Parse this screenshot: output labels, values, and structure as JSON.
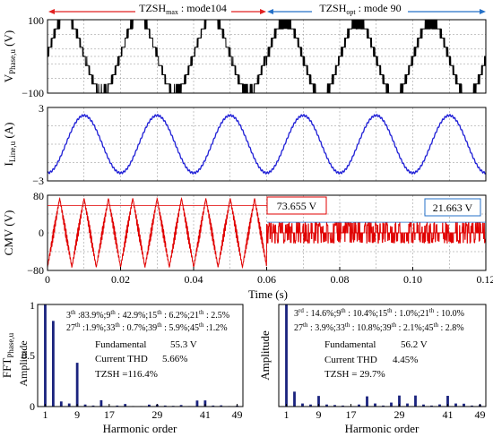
{
  "chart_data": [
    {
      "type": "line",
      "ylabel_main": "V",
      "ylabel_sub": "Phase,u",
      "ylabel_unit": " (V)",
      "ylim": [
        -100,
        100
      ],
      "ytick_labels": [
        "100",
        "−100"
      ],
      "xlim": [
        0,
        0.12
      ],
      "grid": true,
      "color": "#000000",
      "annotations": [
        {
          "main": "TZSH",
          "sub": "max",
          "rest": " : mode104",
          "color": "#e02020",
          "x_from": 0,
          "x_to": 0.06
        },
        {
          "main": "TZSH",
          "sub": "opt",
          "rest": " : mode 90",
          "color": "#2470c8",
          "x_from": 0.06,
          "x_to": 0.12
        }
      ],
      "series": [
        {
          "segment": "mode104",
          "x_range": [
            0,
            0.06
          ],
          "peak": 100,
          "fundamental_period": 0.02
        },
        {
          "segment": "mode90",
          "x_range": [
            0.06,
            0.12
          ],
          "peak": 100,
          "fundamental_period": 0.02
        }
      ]
    },
    {
      "type": "line",
      "ylabel_main": "I",
      "ylabel_sub": "Line,u",
      "ylabel_unit": " (A)",
      "ylim": [
        -3,
        3
      ],
      "ytick_labels": [
        "3",
        "−3"
      ],
      "xlim": [
        0,
        0.12
      ],
      "grid": true,
      "color": "#1f1fd6",
      "series": [
        {
          "amplitude": 2.35,
          "period": 0.02,
          "phase_deg": -90,
          "ripple": 0.08
        }
      ]
    },
    {
      "type": "line",
      "ylabel": "CMV (V)",
      "ylim": [
        -80,
        80
      ],
      "ytick_labels": [
        "80",
        "0",
        "−80"
      ],
      "xlim": [
        0,
        0.12
      ],
      "xticks": [
        0,
        0.02,
        0.04,
        0.06,
        0.08,
        0.1,
        0.12
      ],
      "xtick_labels": [
        "0",
        "0.02",
        "0.04",
        "0.06",
        "0.08",
        "0.10",
        "0.12"
      ],
      "xlabel": "Time (s)",
      "grid": true,
      "color": "#e00000",
      "series": [
        {
          "segment": "mode104",
          "x_range": [
            0,
            0.06
          ],
          "peak": 73.655,
          "period": 0.00667
        },
        {
          "segment": "mode90",
          "x_range": [
            0.06,
            0.12
          ],
          "peak": 21.663
        }
      ],
      "boxes": [
        {
          "text": "73.655 V",
          "color": "#e00000",
          "level": 73.655
        },
        {
          "text": "21.663 V",
          "color": "#2470c8",
          "level": 21.663
        }
      ]
    },
    {
      "type": "bar",
      "ylabel_main": "FFT",
      "ylabel_sub": "Phase,u",
      "ylim": [
        0,
        1
      ],
      "ytick_labels": [
        "1",
        "0.5",
        "0"
      ],
      "yaxis_title": "Amplitude",
      "xlabel": "Harmonic order",
      "xtick_labels": [
        "1",
        "9",
        "17",
        "29",
        "41",
        "49"
      ],
      "xticks": [
        1,
        9,
        17,
        29,
        41,
        49
      ],
      "color": "#1a237e",
      "harmonics": [
        1,
        3,
        5,
        7,
        9,
        11,
        13,
        15,
        17,
        19,
        21,
        23,
        25,
        27,
        29,
        31,
        33,
        35,
        37,
        39,
        41,
        43,
        45,
        47,
        49
      ],
      "values": [
        1.0,
        0.839,
        0.05,
        0.03,
        0.429,
        0.02,
        0.01,
        0.062,
        0.005,
        0.01,
        0.025,
        0.005,
        0.005,
        0.019,
        0.02,
        0.01,
        0.007,
        0.015,
        0.005,
        0.059,
        0.06,
        0.01,
        0.012,
        0.005,
        0.01
      ],
      "text_lines": {
        "l1": [
          "3",
          "th",
          " :83.9%;9",
          "th",
          " : 42.9%;15",
          "th",
          " : 6.2%;21",
          "th",
          " : 2.5%"
        ],
        "l2": [
          "27",
          "th",
          " :1.9%;33",
          "th",
          " : 0.7%;39",
          "th",
          " : 5.9%;45",
          "th",
          " :1.2%"
        ],
        "fund_label": "Fundamental",
        "fund_val": "55.3 V",
        "thd_label": "Current THD",
        "thd_val": "5.66%",
        "tzsh": "TZSH =116.4%"
      }
    },
    {
      "type": "bar",
      "ylabel": "Amplitude",
      "ylim": [
        0,
        1
      ],
      "xlabel": "Harmonic order",
      "xtick_labels": [
        "1",
        "9",
        "17",
        "29",
        "41",
        "49"
      ],
      "xticks": [
        1,
        9,
        17,
        29,
        41,
        49
      ],
      "color": "#1a237e",
      "harmonics": [
        1,
        3,
        5,
        7,
        9,
        11,
        13,
        15,
        17,
        19,
        21,
        23,
        25,
        27,
        29,
        31,
        33,
        35,
        37,
        39,
        41,
        43,
        45,
        47,
        49
      ],
      "values": [
        1.0,
        0.146,
        0.03,
        0.02,
        0.104,
        0.02,
        0.015,
        0.01,
        0.005,
        0.02,
        0.1,
        0.03,
        0.01,
        0.039,
        0.108,
        0.03,
        0.108,
        0.02,
        0.01,
        0.021,
        0.105,
        0.03,
        0.028,
        0.01,
        0.02
      ],
      "text_lines": {
        "l1": [
          "3",
          "rd",
          " : 14.6%;9",
          "th",
          " : 10.4%;15",
          "th",
          " : 1.0%;21",
          "th",
          " : 10.0%"
        ],
        "l2": [
          "27",
          "th",
          " : 3.9%;33",
          "th",
          " : 10.8%;39",
          "th",
          " : 2.1%;45",
          "th",
          " : 2.8%"
        ],
        "fund_label": "Fundamental",
        "fund_val": "56.2 V",
        "thd_label": "Current THD",
        "thd_val": "4.45%",
        "tzsh": "TZSH = 29.7%"
      }
    }
  ]
}
